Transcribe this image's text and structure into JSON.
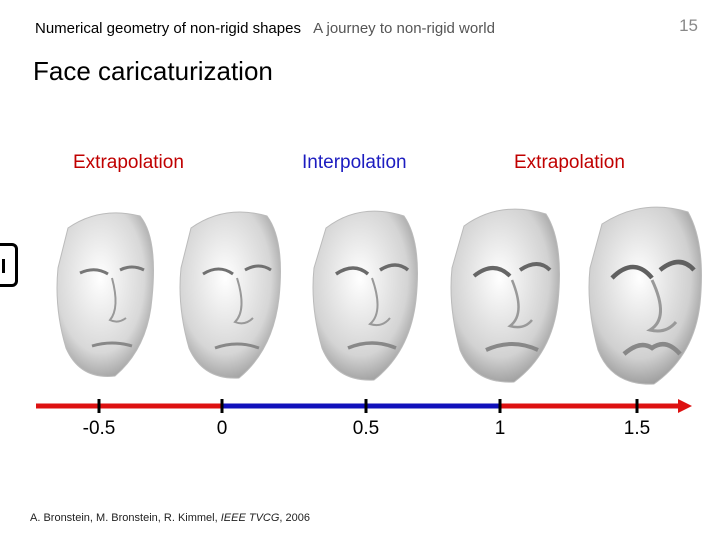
{
  "header": {
    "course": "Numerical geometry of non-rigid shapes",
    "lecture": "A journey to non-rigid world",
    "page_number": "15"
  },
  "title": "Face caricaturization",
  "regions": {
    "left": "Extrapolation",
    "middle": "Interpolation",
    "right": "Extrapolation"
  },
  "axis": {
    "ticks": [
      "-0.5",
      "0",
      "0.5",
      "1",
      "1.5"
    ],
    "colors": {
      "extrapolation": "#dd1111",
      "interpolation": "#1111bb"
    }
  },
  "faces": [
    "face-minus-0.5",
    "face-0",
    "face-0.5",
    "face-1",
    "face-1.5"
  ],
  "citation": {
    "authors": "A. Bronstein, M. Bronstein, R. Kimmel, ",
    "venue": "IEEE TVCG",
    "year": ", 2006"
  }
}
